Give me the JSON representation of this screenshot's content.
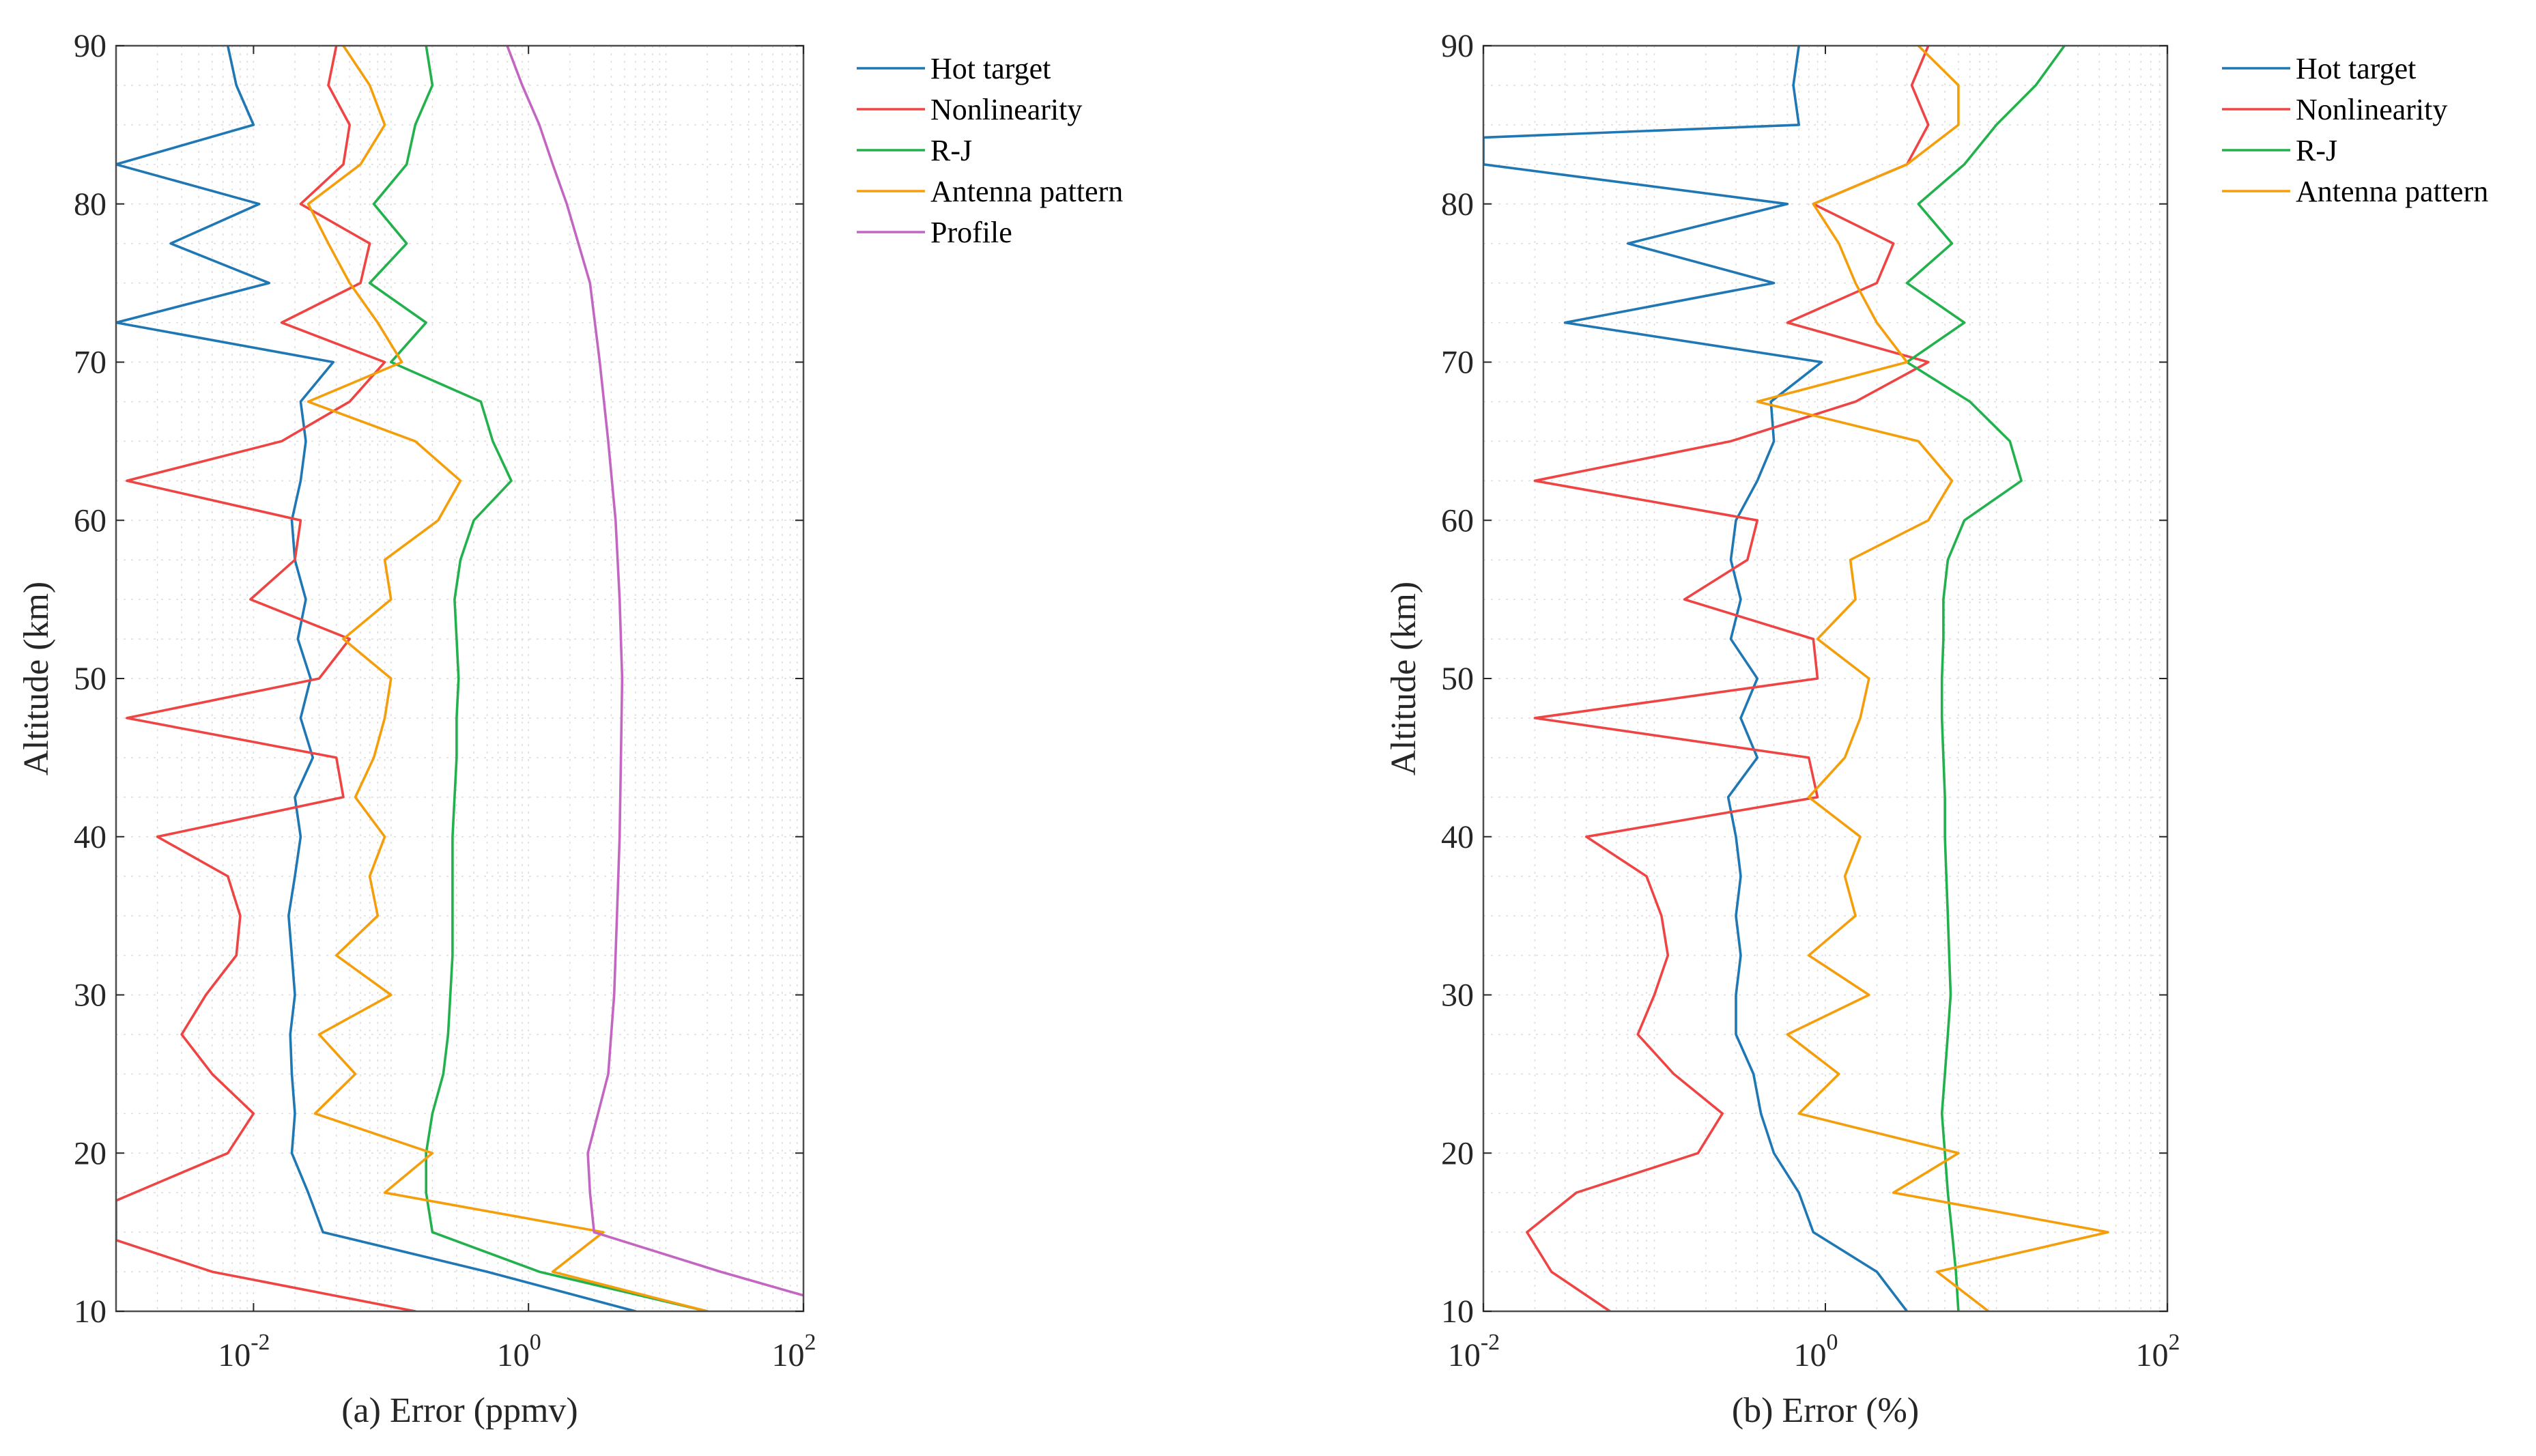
{
  "chart_data": [
    {
      "type": "line",
      "id": "a",
      "xlabel": "(a) Error (ppmv)",
      "ylabel": "Altitude (km)",
      "xscale": "log",
      "xlim": [
        0.001,
        100
      ],
      "ylim": [
        10,
        90
      ],
      "xticks": [
        0.01,
        1,
        100
      ],
      "xtick_labels": [
        {
          "base": "10",
          "exp": "-2"
        },
        {
          "base": "10",
          "exp": "0"
        },
        {
          "base": "10",
          "exp": "2"
        }
      ],
      "yticks": [
        10,
        20,
        30,
        40,
        50,
        60,
        70,
        80,
        90
      ],
      "ytick_labels": [
        "10",
        "20",
        "30",
        "40",
        "50",
        "60",
        "70",
        "80",
        "90"
      ],
      "grid": "minor",
      "legend_position": "outside-top-right",
      "series": [
        {
          "name": "Hot target",
          "color": "#1f77b4",
          "y": [
            10,
            12.5,
            15,
            17.5,
            20,
            22.5,
            25,
            27.5,
            30,
            32.5,
            35,
            37.5,
            40,
            42.5,
            45,
            47.5,
            50,
            52.5,
            55,
            57.5,
            60,
            62.5,
            65,
            67.5,
            70,
            72.5,
            75,
            77.5,
            80,
            82.5,
            85,
            87.5,
            90
          ],
          "x": [
            6,
            0.5,
            0.032,
            0.025,
            0.019,
            0.02,
            0.019,
            0.0185,
            0.02,
            0.019,
            0.018,
            0.02,
            0.022,
            0.02,
            0.027,
            0.022,
            0.026,
            0.021,
            0.024,
            0.02,
            0.019,
            0.022,
            0.024,
            0.022,
            0.038,
            0.001,
            0.013,
            0.0025,
            0.011,
            0.001,
            0.01,
            0.0075,
            0.0065
          ]
        },
        {
          "name": "Nonlinearity",
          "color": "#ef4444",
          "y": [
            10,
            12.5,
            14.5,
            17,
            20,
            22.5,
            25,
            27.5,
            30,
            32.5,
            35,
            37.5,
            40,
            42.5,
            45,
            47.5,
            50,
            52.5,
            55,
            57.5,
            60,
            62.5,
            65,
            67.5,
            70,
            72.5,
            75,
            77.5,
            80,
            82.5,
            85,
            87.5,
            90
          ],
          "x": [
            0.15,
            0.005,
            0.001,
            0.001,
            0.0065,
            0.01,
            0.005,
            0.003,
            0.0045,
            0.0075,
            0.008,
            0.0065,
            0.002,
            0.045,
            0.04,
            0.0012,
            0.03,
            0.05,
            0.0095,
            0.02,
            0.022,
            0.0012,
            0.016,
            0.05,
            0.09,
            0.016,
            0.06,
            0.07,
            0.022,
            0.045,
            0.05,
            0.035,
            0.04
          ]
        },
        {
          "name": "R-J",
          "color": "#22b14c",
          "y": [
            10,
            12.5,
            15,
            17.5,
            20,
            22.5,
            25,
            27.5,
            30,
            32.5,
            35,
            37.5,
            40,
            42.5,
            45,
            47.5,
            50,
            52.5,
            55,
            57.5,
            60,
            62.5,
            65,
            67.5,
            70,
            72.5,
            75,
            77.5,
            80,
            82.5,
            85,
            87.5,
            90
          ],
          "x": [
            20,
            1.2,
            0.2,
            0.18,
            0.18,
            0.2,
            0.24,
            0.26,
            0.27,
            0.28,
            0.28,
            0.28,
            0.28,
            0.29,
            0.3,
            0.3,
            0.31,
            0.3,
            0.29,
            0.32,
            0.4,
            0.75,
            0.55,
            0.45,
            0.1,
            0.18,
            0.07,
            0.13,
            0.075,
            0.13,
            0.15,
            0.2,
            0.18
          ]
        },
        {
          "name": "Antenna pattern",
          "color": "#f59e0b",
          "y": [
            10,
            12.5,
            15,
            17.5,
            20,
            22.5,
            25,
            27.5,
            30,
            32.5,
            35,
            37.5,
            40,
            42.5,
            45,
            47.5,
            50,
            52.5,
            55,
            57.5,
            60,
            62.5,
            65,
            67.5,
            70,
            72.5,
            75,
            77.5,
            80,
            82.5,
            85,
            87.5,
            90
          ],
          "x": [
            20,
            1.5,
            3.5,
            0.09,
            0.2,
            0.028,
            0.055,
            0.03,
            0.1,
            0.04,
            0.08,
            0.07,
            0.09,
            0.055,
            0.075,
            0.09,
            0.1,
            0.045,
            0.1,
            0.09,
            0.22,
            0.32,
            0.15,
            0.025,
            0.12,
            0.08,
            0.05,
            0.035,
            0.025,
            0.06,
            0.09,
            0.07,
            0.045
          ]
        },
        {
          "name": "Profile",
          "color": "#c266c2",
          "y": [
            11,
            12.5,
            15,
            17.5,
            20,
            25,
            30,
            35,
            40,
            45,
            50,
            55,
            60,
            65,
            70,
            75,
            80,
            82.5,
            85,
            87.5,
            90
          ],
          "x": [
            100,
            25,
            3,
            2.8,
            2.7,
            3.8,
            4.2,
            4.4,
            4.6,
            4.7,
            4.8,
            4.6,
            4.3,
            3.8,
            3.3,
            2.8,
            1.9,
            1.5,
            1.2,
            0.9,
            0.7
          ]
        }
      ]
    },
    {
      "type": "line",
      "id": "b",
      "xlabel": "(b) Error (%)",
      "ylabel": "Altitude (km)",
      "xscale": "log",
      "xlim": [
        0.01,
        100
      ],
      "ylim": [
        10,
        90
      ],
      "xticks": [
        0.01,
        1,
        100
      ],
      "xtick_labels": [
        {
          "base": "10",
          "exp": "-2"
        },
        {
          "base": "10",
          "exp": "0"
        },
        {
          "base": "10",
          "exp": "2"
        }
      ],
      "yticks": [
        10,
        20,
        30,
        40,
        50,
        60,
        70,
        80,
        90
      ],
      "ytick_labels": [
        "10",
        "20",
        "30",
        "40",
        "50",
        "60",
        "70",
        "80",
        "90"
      ],
      "grid": "minor",
      "legend_position": "outside-top-right",
      "series": [
        {
          "name": "Hot target",
          "color": "#1f77b4",
          "y": [
            10,
            12.5,
            15,
            17.5,
            20,
            22.5,
            25,
            27.5,
            30,
            32.5,
            35,
            37.5,
            40,
            42.5,
            45,
            47.5,
            50,
            52.5,
            55,
            57.5,
            60,
            62.5,
            65,
            67.5,
            70,
            72.5,
            75,
            77.5,
            80,
            82.5,
            84.2,
            85,
            87.5,
            90
          ],
          "x": [
            3,
            2,
            0.85,
            0.7,
            0.5,
            0.42,
            0.38,
            0.3,
            0.3,
            0.32,
            0.3,
            0.32,
            0.3,
            0.27,
            0.4,
            0.32,
            0.4,
            0.28,
            0.32,
            0.28,
            0.3,
            0.4,
            0.5,
            0.48,
            0.95,
            0.03,
            0.5,
            0.07,
            0.6,
            0.01,
            0.01,
            0.7,
            0.65,
            0.7
          ]
        },
        {
          "name": "Nonlinearity",
          "color": "#ef4444",
          "y": [
            10,
            12.5,
            15,
            17.5,
            20,
            22.5,
            25,
            27.5,
            30,
            32.5,
            35,
            37.5,
            40,
            42.5,
            45,
            47.5,
            50,
            52.5,
            55,
            57.5,
            60,
            62.5,
            65,
            67.5,
            70,
            72.5,
            75,
            77.5,
            80,
            82.5,
            85,
            87.5,
            90
          ],
          "x": [
            0.055,
            0.025,
            0.018,
            0.035,
            0.18,
            0.25,
            0.13,
            0.08,
            0.1,
            0.12,
            0.11,
            0.09,
            0.04,
            0.9,
            0.8,
            0.02,
            0.9,
            0.85,
            0.15,
            0.35,
            0.4,
            0.02,
            0.28,
            1.5,
            4,
            0.6,
            2,
            2.5,
            0.85,
            3,
            4,
            3.2,
            4
          ]
        },
        {
          "name": "R-J",
          "color": "#22b14c",
          "y": [
            10,
            12.5,
            15,
            17.5,
            20,
            22.5,
            25,
            27.5,
            30,
            32.5,
            35,
            37.5,
            40,
            42.5,
            45,
            47.5,
            50,
            52.5,
            55,
            57.5,
            60,
            62.5,
            65,
            67.5,
            70,
            72.5,
            75,
            77.5,
            80,
            82.5,
            85,
            87.5,
            90
          ],
          "x": [
            6,
            5.8,
            5.5,
            5.2,
            5,
            4.8,
            5,
            5.2,
            5.4,
            5.3,
            5.2,
            5.1,
            5,
            5,
            4.9,
            4.8,
            4.8,
            4.9,
            4.9,
            5.2,
            6.5,
            14,
            12,
            7,
            3,
            6.5,
            3,
            5.5,
            3.5,
            6.5,
            10,
            17,
            25
          ]
        },
        {
          "name": "Antenna pattern",
          "color": "#f59e0b",
          "y": [
            10,
            12.5,
            15,
            17.5,
            20,
            22.5,
            25,
            27.5,
            30,
            32.5,
            35,
            37.5,
            40,
            42.5,
            45,
            47.5,
            50,
            52.5,
            55,
            57.5,
            60,
            62.5,
            65,
            67.5,
            70,
            72.5,
            75,
            77.5,
            80,
            82.5,
            85,
            87.5,
            90
          ],
          "x": [
            9,
            4.5,
            45,
            2.5,
            6,
            0.7,
            1.2,
            0.6,
            1.8,
            0.8,
            1.5,
            1.3,
            1.6,
            0.8,
            1.3,
            1.6,
            1.8,
            0.9,
            1.5,
            1.4,
            4,
            5.5,
            3.5,
            0.4,
            3,
            2,
            1.5,
            1.2,
            0.85,
            3,
            6,
            6,
            3.5
          ]
        }
      ]
    }
  ]
}
